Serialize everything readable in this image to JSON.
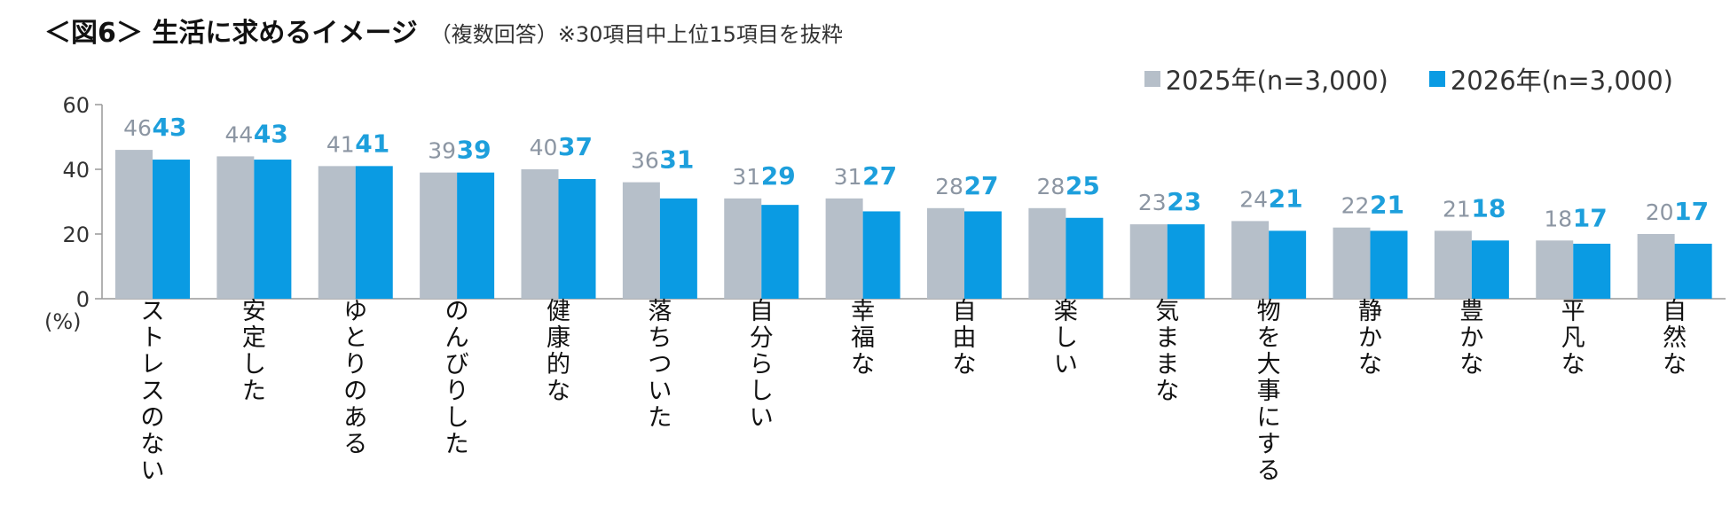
{
  "header": {
    "title": "＜図6＞ 生活に求めるイメージ",
    "subtitle": "（複数回答）※30項目中上位15項目を抜粋"
  },
  "chart_data": {
    "type": "bar",
    "unit_label": "(%)",
    "ylim": [
      0,
      60
    ],
    "yticks": [
      0,
      20,
      40,
      60
    ],
    "grid": false,
    "legend_position": "top-right",
    "categories": [
      "ストレスのない",
      "安定した",
      "ゆとりのある",
      "のんびりした",
      "健康的な",
      "落ちついた",
      "自分らしい",
      "幸福な",
      "自由な",
      "楽しい",
      "気ままな",
      "物を大事にする",
      "静かな",
      "豊かな",
      "平凡な",
      "自然な"
    ],
    "series": [
      {
        "name": "2025年(n=3,000)",
        "color": "#b6bfc9",
        "values": [
          46,
          44,
          41,
          39,
          40,
          36,
          31,
          31,
          28,
          28,
          23,
          24,
          22,
          21,
          18,
          20
        ]
      },
      {
        "name": "2026年(n=3,000)",
        "color": "#0a9be3",
        "values": [
          43,
          43,
          41,
          39,
          37,
          31,
          29,
          27,
          27,
          25,
          23,
          21,
          21,
          18,
          17,
          17
        ]
      }
    ]
  }
}
